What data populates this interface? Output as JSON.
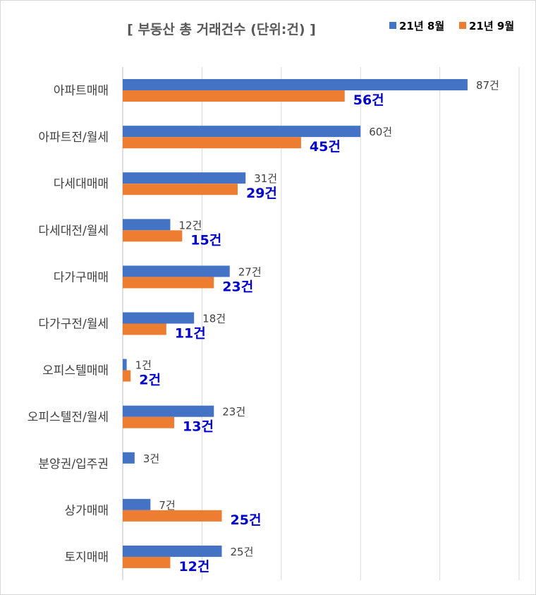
{
  "chart_data": {
    "type": "bar",
    "orientation": "horizontal",
    "title": "[ 부동산 총 거래건수 (단위:건) ]",
    "categories": [
      "아파트매매",
      "아파트전/월세",
      "다세대매매",
      "다세대전/월세",
      "다가구매매",
      "다가구전/월세",
      "오피스텔매매",
      "오피스텔전/월세",
      "분양권/입주권",
      "상가매매",
      "토지매매"
    ],
    "series": [
      {
        "name": "21년 8월",
        "color": "#4472c4",
        "values": [
          87,
          60,
          31,
          12,
          27,
          18,
          1,
          23,
          3,
          7,
          25
        ],
        "data_labels": [
          "87건",
          "60건",
          "31건",
          "12건",
          "27건",
          "18건",
          "1건",
          "23건",
          "3건",
          "7건",
          "25건"
        ]
      },
      {
        "name": "21년 9월",
        "color": "#ed7d31",
        "values": [
          56,
          45,
          29,
          15,
          23,
          11,
          2,
          13,
          null,
          25,
          12
        ],
        "data_labels": [
          "56건",
          "45건",
          "29건",
          "15건",
          "23건",
          "11건",
          "2건",
          "13건",
          "",
          "25건",
          "12건"
        ]
      }
    ],
    "xlim": [
      0,
      100
    ],
    "grid": true,
    "legend_position": "top-right",
    "xlabel": "",
    "ylabel": ""
  }
}
